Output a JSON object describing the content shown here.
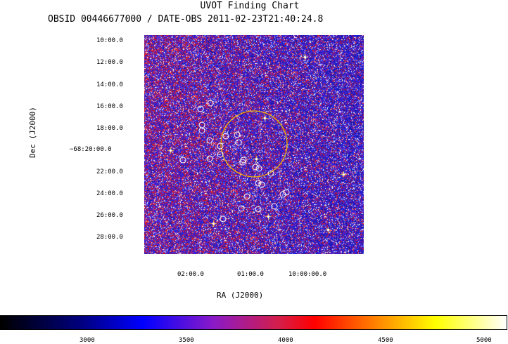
{
  "header": {
    "title": "UVOT Finding Chart",
    "obs_line": "OBSID 00446677000 / DATE-OBS 2011-02-23T21:40:24.8"
  },
  "axes": {
    "xlabel": "RA (J2000)",
    "ylabel": "Dec (J2000)",
    "dec_ticks": [
      "10:00.0",
      "12:00.0",
      "14:00.0",
      "16:00.0",
      "18:00.0",
      "−68:20:00.0",
      "22:00.0",
      "24:00.0",
      "26:00.0",
      "28:00.0"
    ],
    "ra_ticks": [
      "02:00.0",
      "01:00.0",
      "10:00:00.0"
    ]
  },
  "colorbar": {
    "ticks": [
      "3000",
      "3500",
      "4000",
      "4500",
      "5000"
    ]
  },
  "overlay": {
    "region_color": "#f0b000",
    "source_color": "#ffffff"
  }
}
